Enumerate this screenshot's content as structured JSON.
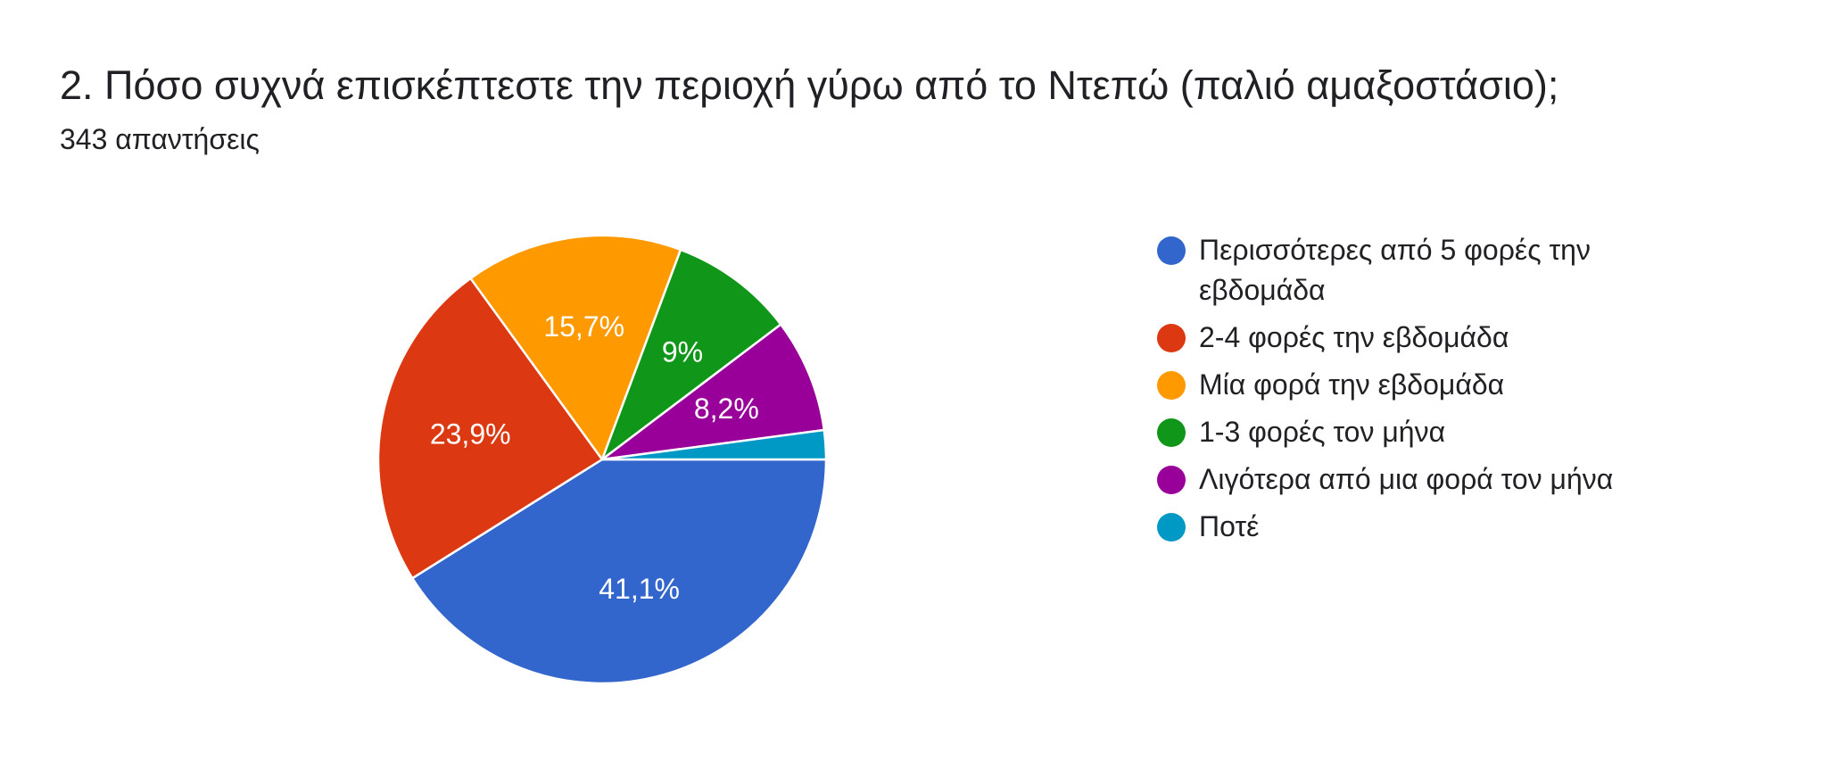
{
  "question": {
    "title": "2. Πόσο συχνά επισκέπτεστε την περιοχή γύρω από το Ντεπώ (παλιό αμαξοστάσιο);",
    "responses": "343 απαντήσεις"
  },
  "chart_data": {
    "type": "pie",
    "slices": [
      {
        "label": "Περισσότερες από 5 φορές την εβδομάδα",
        "value": 41.1,
        "value_label": "41,1%",
        "color": "#3366cc"
      },
      {
        "label": "2-4 φορές την εβδομάδα",
        "value": 23.9,
        "value_label": "23,9%",
        "color": "#dc3912"
      },
      {
        "label": "Μία φορά την εβδομάδα",
        "value": 15.7,
        "value_label": "15,7%",
        "color": "#ff9900"
      },
      {
        "label": "1-3 φορές τον μήνα",
        "value": 9.0,
        "value_label": "9%",
        "color": "#109618"
      },
      {
        "label": "Λιγότερα από μια φορά τον μήνα",
        "value": 8.2,
        "value_label": "8,2%",
        "color": "#990099"
      },
      {
        "label": "Ποτέ",
        "value": 2.1,
        "value_label": "",
        "color": "#0099c6"
      }
    ],
    "legend_position": "right"
  }
}
